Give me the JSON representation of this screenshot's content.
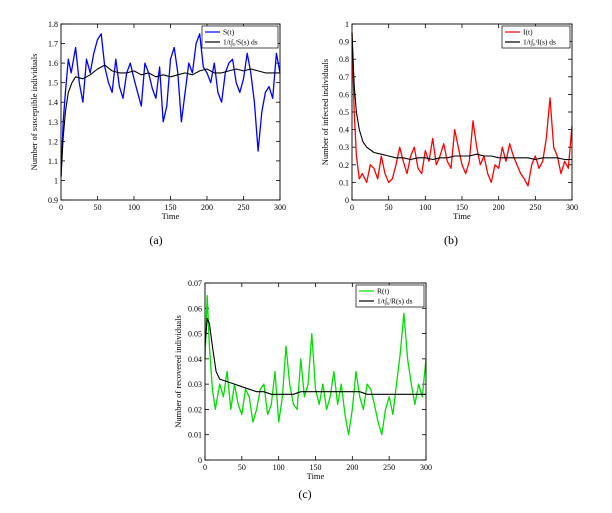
{
  "chart_data": [
    {
      "type": "line",
      "panel_label": "(a)",
      "xlabel": "Time",
      "ylabel": "Number of  susceptible individuals",
      "xlim": [
        0,
        300
      ],
      "ylim": [
        0.9,
        1.8
      ],
      "xticks": [
        "0",
        "50",
        "100",
        "150",
        "200",
        "250",
        "300"
      ],
      "yticks": [
        "0.9",
        "1",
        "1.1",
        "1.2",
        "1.3",
        "1.4",
        "1.5",
        "1.6",
        "1.7",
        "1.8"
      ],
      "legend_position": "top-right",
      "series": [
        {
          "name": "S(t)",
          "color": "#0000ff",
          "x": [
            0,
            3,
            6,
            10,
            14,
            20,
            25,
            30,
            35,
            40,
            45,
            50,
            55,
            60,
            65,
            70,
            75,
            80,
            85,
            90,
            95,
            100,
            105,
            110,
            115,
            120,
            125,
            130,
            135,
            140,
            145,
            150,
            155,
            160,
            165,
            170,
            175,
            180,
            185,
            190,
            195,
            200,
            205,
            210,
            215,
            220,
            225,
            230,
            235,
            240,
            245,
            250,
            255,
            260,
            265,
            270,
            275,
            280,
            285,
            290,
            295,
            300
          ],
          "y": [
            1.02,
            1.3,
            1.45,
            1.62,
            1.55,
            1.68,
            1.5,
            1.4,
            1.62,
            1.55,
            1.65,
            1.72,
            1.75,
            1.58,
            1.5,
            1.45,
            1.62,
            1.48,
            1.42,
            1.55,
            1.6,
            1.52,
            1.45,
            1.38,
            1.6,
            1.55,
            1.47,
            1.42,
            1.58,
            1.3,
            1.38,
            1.62,
            1.68,
            1.55,
            1.3,
            1.45,
            1.6,
            1.55,
            1.7,
            1.75,
            1.58,
            1.55,
            1.5,
            1.6,
            1.45,
            1.4,
            1.55,
            1.6,
            1.62,
            1.5,
            1.45,
            1.52,
            1.65,
            1.55,
            1.4,
            1.15,
            1.35,
            1.45,
            1.48,
            1.42,
            1.65,
            1.55
          ]
        },
        {
          "name": "1/t∫₀ᵗS(s) ds",
          "color": "#000000",
          "x": [
            0,
            3,
            6,
            10,
            15,
            20,
            30,
            40,
            50,
            60,
            70,
            80,
            90,
            100,
            110,
            120,
            130,
            140,
            150,
            160,
            170,
            180,
            190,
            200,
            210,
            220,
            230,
            240,
            250,
            260,
            270,
            280,
            290,
            300
          ],
          "y": [
            1.02,
            1.22,
            1.35,
            1.45,
            1.5,
            1.53,
            1.52,
            1.54,
            1.57,
            1.59,
            1.56,
            1.55,
            1.55,
            1.56,
            1.54,
            1.55,
            1.53,
            1.54,
            1.53,
            1.54,
            1.55,
            1.54,
            1.56,
            1.57,
            1.55,
            1.55,
            1.56,
            1.57,
            1.56,
            1.57,
            1.56,
            1.55,
            1.55,
            1.55
          ]
        }
      ]
    },
    {
      "type": "line",
      "panel_label": "(b)",
      "xlabel": "Time",
      "ylabel": "Number of  infected individuals",
      "xlim": [
        0,
        300
      ],
      "ylim": [
        0,
        1
      ],
      "xticks": [
        "0",
        "50",
        "100",
        "150",
        "200",
        "250",
        "300"
      ],
      "yticks": [
        "0",
        "0.1",
        "0.2",
        "0.3",
        "0.4",
        "0.5",
        "0.6",
        "0.7",
        "0.8",
        "0.9",
        "1"
      ],
      "legend_position": "top-right",
      "series": [
        {
          "name": "I(t)",
          "color": "#ff0000",
          "x": [
            0,
            3,
            6,
            10,
            14,
            20,
            25,
            30,
            35,
            40,
            45,
            50,
            55,
            60,
            65,
            70,
            75,
            80,
            85,
            90,
            95,
            100,
            105,
            110,
            115,
            120,
            125,
            130,
            135,
            140,
            145,
            150,
            155,
            160,
            165,
            170,
            175,
            180,
            185,
            190,
            195,
            200,
            205,
            210,
            215,
            220,
            225,
            230,
            235,
            240,
            245,
            250,
            255,
            260,
            265,
            270,
            275,
            280,
            285,
            290,
            295,
            300
          ],
          "y": [
            0.95,
            0.5,
            0.25,
            0.12,
            0.15,
            0.1,
            0.2,
            0.18,
            0.12,
            0.25,
            0.15,
            0.1,
            0.12,
            0.2,
            0.3,
            0.22,
            0.15,
            0.25,
            0.3,
            0.18,
            0.15,
            0.28,
            0.22,
            0.35,
            0.2,
            0.25,
            0.32,
            0.22,
            0.18,
            0.4,
            0.3,
            0.2,
            0.15,
            0.22,
            0.45,
            0.3,
            0.2,
            0.25,
            0.15,
            0.1,
            0.2,
            0.18,
            0.3,
            0.22,
            0.32,
            0.25,
            0.2,
            0.15,
            0.12,
            0.08,
            0.2,
            0.25,
            0.18,
            0.22,
            0.35,
            0.58,
            0.3,
            0.25,
            0.15,
            0.22,
            0.18,
            0.42
          ]
        },
        {
          "name": "1/t∫₀ᵗI(s) ds",
          "color": "#000000",
          "x": [
            0,
            3,
            6,
            10,
            15,
            20,
            30,
            40,
            50,
            60,
            70,
            80,
            90,
            100,
            110,
            120,
            130,
            140,
            150,
            160,
            170,
            180,
            190,
            200,
            210,
            220,
            230,
            240,
            250,
            260,
            270,
            280,
            290,
            300
          ],
          "y": [
            0.95,
            0.65,
            0.5,
            0.4,
            0.33,
            0.3,
            0.27,
            0.26,
            0.25,
            0.24,
            0.24,
            0.23,
            0.24,
            0.24,
            0.23,
            0.24,
            0.24,
            0.25,
            0.25,
            0.25,
            0.26,
            0.25,
            0.25,
            0.24,
            0.24,
            0.24,
            0.24,
            0.24,
            0.23,
            0.24,
            0.24,
            0.24,
            0.23,
            0.23
          ]
        }
      ]
    },
    {
      "type": "line",
      "panel_label": "(c)",
      "xlabel": "Time",
      "ylabel": "Number of recovered individuals",
      "xlim": [
        0,
        300
      ],
      "ylim": [
        0,
        0.07
      ],
      "xticks": [
        "0",
        "50",
        "100",
        "150",
        "200",
        "250",
        "300"
      ],
      "yticks": [
        "0",
        "0.01",
        "0.02",
        "0.03",
        "0.04",
        "0.05",
        "0.06",
        "0.07"
      ],
      "legend_position": "top-right",
      "series": [
        {
          "name": "R(t)",
          "color": "#00dd00",
          "x": [
            0,
            3,
            6,
            10,
            14,
            20,
            25,
            30,
            35,
            40,
            45,
            50,
            55,
            60,
            65,
            70,
            75,
            80,
            85,
            90,
            95,
            100,
            105,
            110,
            115,
            120,
            125,
            130,
            135,
            140,
            145,
            150,
            155,
            160,
            165,
            170,
            175,
            180,
            185,
            190,
            195,
            200,
            205,
            210,
            215,
            220,
            225,
            230,
            235,
            240,
            245,
            250,
            255,
            260,
            265,
            270,
            275,
            280,
            285,
            290,
            295,
            300
          ],
          "y": [
            0.04,
            0.065,
            0.045,
            0.028,
            0.02,
            0.03,
            0.025,
            0.035,
            0.02,
            0.03,
            0.022,
            0.018,
            0.028,
            0.025,
            0.015,
            0.02,
            0.028,
            0.03,
            0.018,
            0.022,
            0.035,
            0.015,
            0.025,
            0.045,
            0.03,
            0.022,
            0.02,
            0.04,
            0.025,
            0.03,
            0.05,
            0.028,
            0.022,
            0.03,
            0.02,
            0.025,
            0.035,
            0.022,
            0.03,
            0.018,
            0.01,
            0.02,
            0.035,
            0.025,
            0.02,
            0.03,
            0.028,
            0.022,
            0.015,
            0.01,
            0.02,
            0.025,
            0.018,
            0.03,
            0.042,
            0.058,
            0.04,
            0.03,
            0.022,
            0.03,
            0.025,
            0.04
          ]
        },
        {
          "name": "1/t∫₀ᵗR(s) ds",
          "color": "#000000",
          "x": [
            0,
            3,
            6,
            10,
            15,
            20,
            30,
            40,
            50,
            60,
            70,
            80,
            90,
            100,
            110,
            120,
            130,
            140,
            150,
            160,
            170,
            180,
            190,
            200,
            210,
            220,
            230,
            240,
            250,
            260,
            270,
            280,
            290,
            300
          ],
          "y": [
            0.045,
            0.056,
            0.054,
            0.045,
            0.035,
            0.032,
            0.031,
            0.03,
            0.029,
            0.028,
            0.027,
            0.027,
            0.026,
            0.026,
            0.026,
            0.026,
            0.027,
            0.027,
            0.027,
            0.027,
            0.027,
            0.027,
            0.027,
            0.027,
            0.027,
            0.026,
            0.026,
            0.026,
            0.026,
            0.026,
            0.026,
            0.026,
            0.026,
            0.026
          ]
        }
      ]
    }
  ]
}
